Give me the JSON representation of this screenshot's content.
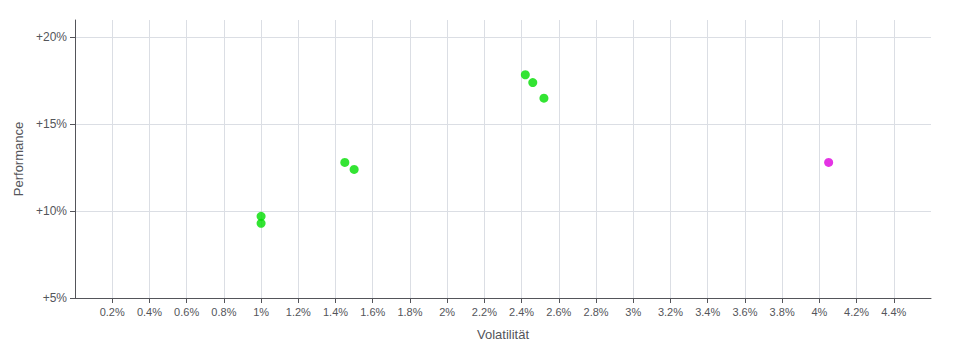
{
  "chart_data": {
    "type": "scatter",
    "xlabel": "Volatilität",
    "ylabel": "Performance",
    "series": [
      {
        "color": "#00dd00",
        "x": [
          1.0,
          1.0,
          1.45,
          1.5,
          2.42,
          2.46,
          2.52
        ],
        "values": [
          9.7,
          9.3,
          12.8,
          12.4,
          17.85,
          17.4,
          16.5
        ]
      },
      {
        "color": "#dd00dd",
        "x": [
          4.05
        ],
        "values": [
          12.8
        ]
      }
    ],
    "xlim": [
      0.0,
      4.6
    ],
    "ylim": [
      5.0,
      21.0
    ],
    "xticks": [
      {
        "value": 0.2,
        "label": "0.2%"
      },
      {
        "value": 0.4,
        "label": "0.4%"
      },
      {
        "value": 0.6,
        "label": "0.6%"
      },
      {
        "value": 0.8,
        "label": "0.8%"
      },
      {
        "value": 1.0,
        "label": "1%"
      },
      {
        "value": 1.2,
        "label": "1.2%"
      },
      {
        "value": 1.4,
        "label": "1.4%"
      },
      {
        "value": 1.6,
        "label": "1.6%"
      },
      {
        "value": 1.8,
        "label": "1.8%"
      },
      {
        "value": 2.0,
        "label": "2%"
      },
      {
        "value": 2.2,
        "label": "2.2%"
      },
      {
        "value": 2.4,
        "label": "2.4%"
      },
      {
        "value": 2.6,
        "label": "2.6%"
      },
      {
        "value": 2.8,
        "label": "2.8%"
      },
      {
        "value": 3.0,
        "label": "3%"
      },
      {
        "value": 3.2,
        "label": "3.2%"
      },
      {
        "value": 3.4,
        "label": "3.4%"
      },
      {
        "value": 3.6,
        "label": "3.6%"
      },
      {
        "value": 3.8,
        "label": "3.8%"
      },
      {
        "value": 4.0,
        "label": "4%"
      },
      {
        "value": 4.2,
        "label": "4.2%"
      },
      {
        "value": 4.4,
        "label": "4.4%"
      }
    ],
    "yticks": [
      {
        "value": 5.0,
        "label": "+5%"
      },
      {
        "value": 10.0,
        "label": "+10%"
      },
      {
        "value": 15.0,
        "label": "+15%"
      },
      {
        "value": 20.0,
        "label": "+20%"
      }
    ],
    "grid": true
  }
}
